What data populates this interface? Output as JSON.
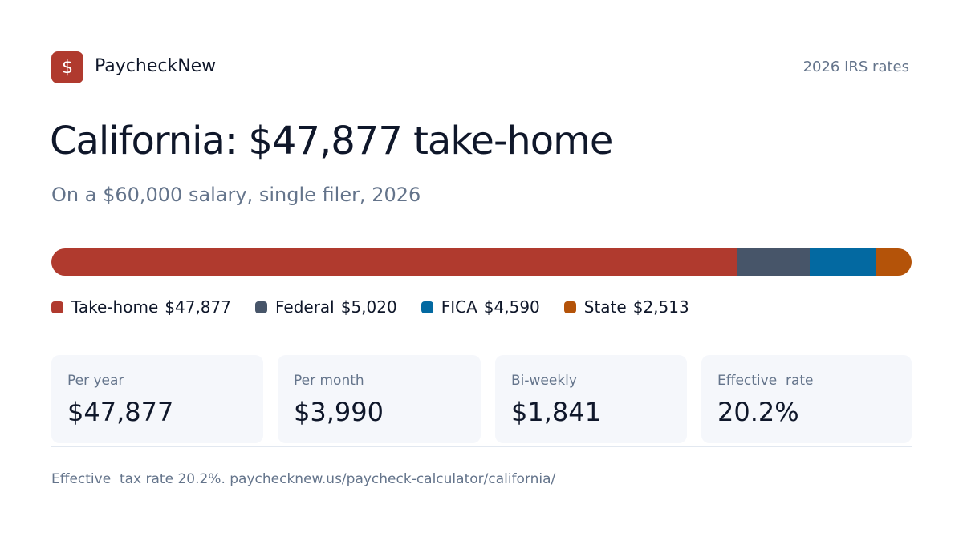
{
  "header": {
    "logo_icon": "$",
    "brand": "PaycheckNew",
    "badge": "2026 IRS rates"
  },
  "title": "California: $47,877 take-home",
  "subtitle": "On a $60,000 salary, single filer, 2026",
  "breakdown": {
    "segments": [
      {
        "name": "Take-home",
        "value": 47877,
        "label": "$47,877",
        "color": "#b03a2e"
      },
      {
        "name": "Federal",
        "value": 5020,
        "label": "$5,020",
        "color": "#475569"
      },
      {
        "name": "FICA",
        "value": 4590,
        "label": "$4,590",
        "color": "#0369a1"
      },
      {
        "name": "State",
        "value": 2513,
        "label": "$2,513",
        "color": "#b45309"
      }
    ]
  },
  "stats": [
    {
      "label": "Per year",
      "value": "$47,877"
    },
    {
      "label": "Per month",
      "value": "$3,990"
    },
    {
      "label": "Bi-weekly",
      "value": "$1,841"
    },
    {
      "label": "Effective  rate",
      "value": "20.2%"
    }
  ],
  "footer": "Effective  tax rate 20.2%. paychecknew.us/paycheck-calculator/california/"
}
